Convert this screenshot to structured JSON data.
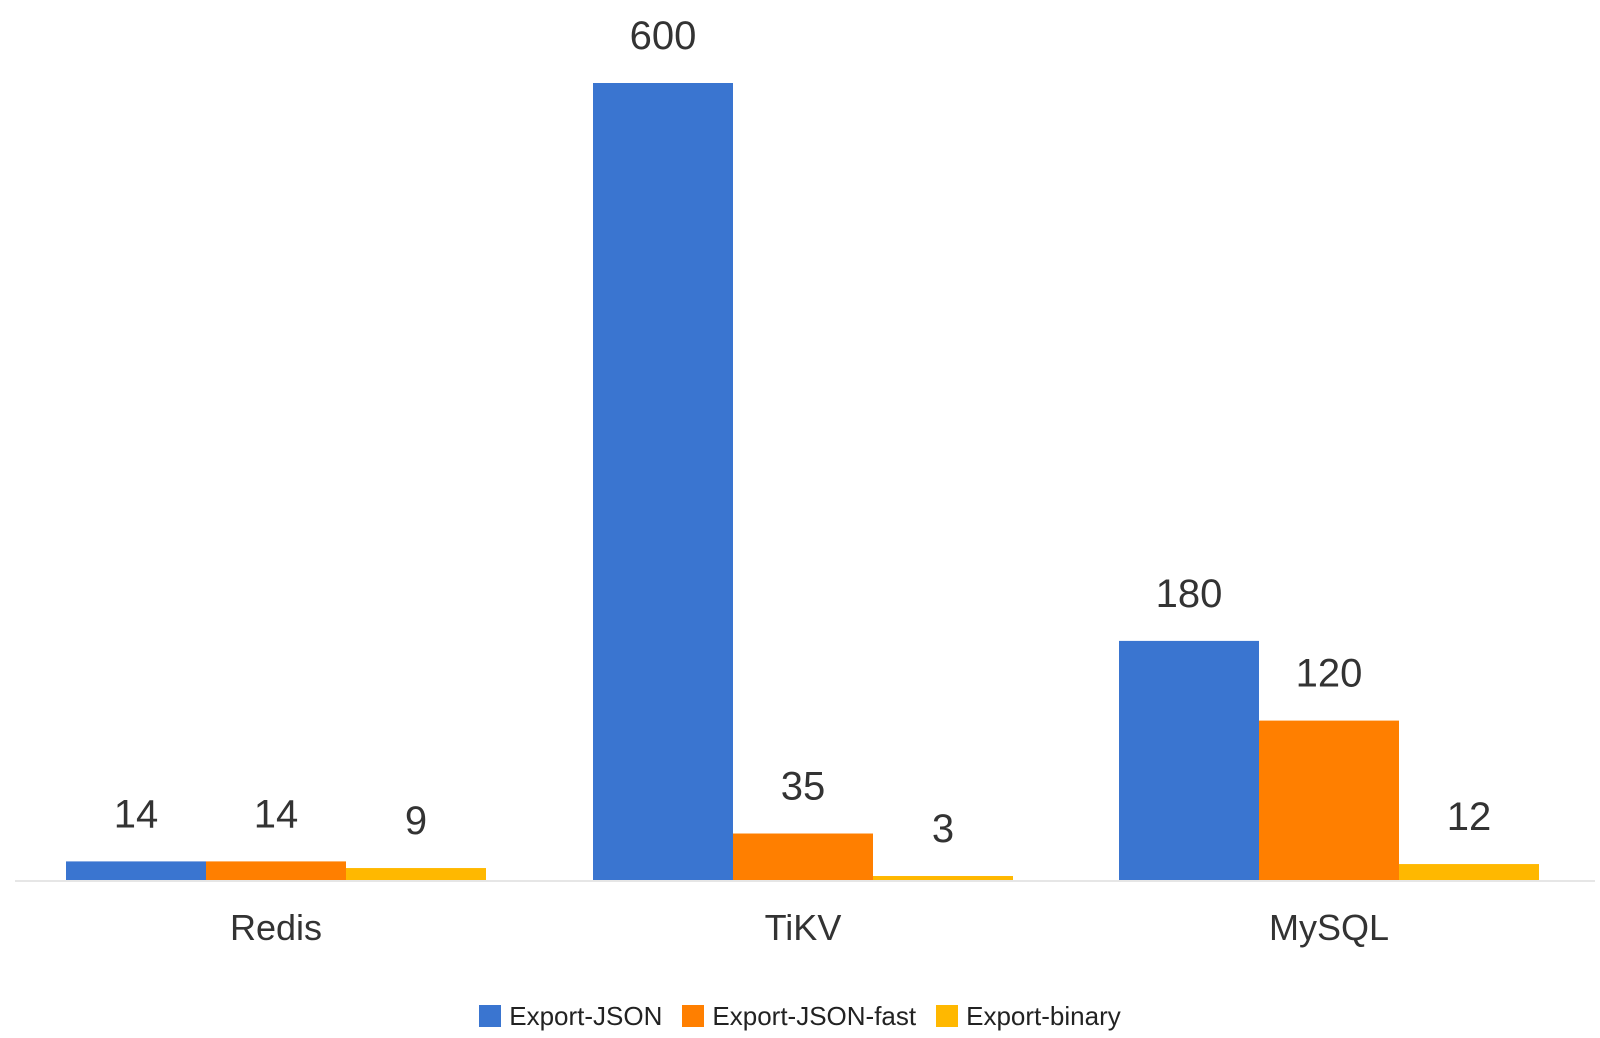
{
  "chart_data": {
    "type": "bar",
    "categories": [
      "Redis",
      "TiKV",
      "MySQL"
    ],
    "series": [
      {
        "name": "Export-JSON",
        "values": [
          14,
          600,
          180
        ],
        "color": "#3a75d0"
      },
      {
        "name": "Export-JSON-fast",
        "values": [
          14,
          35,
          120
        ],
        "color": "#ff7f00"
      },
      {
        "name": "Export-binary",
        "values": [
          9,
          3,
          12
        ],
        "color": "#ffb800"
      }
    ],
    "title": "",
    "xlabel": "",
    "ylabel": "",
    "ylim": [
      0,
      600
    ],
    "grid": false,
    "legend_position": "bottom",
    "data_labels": true
  }
}
